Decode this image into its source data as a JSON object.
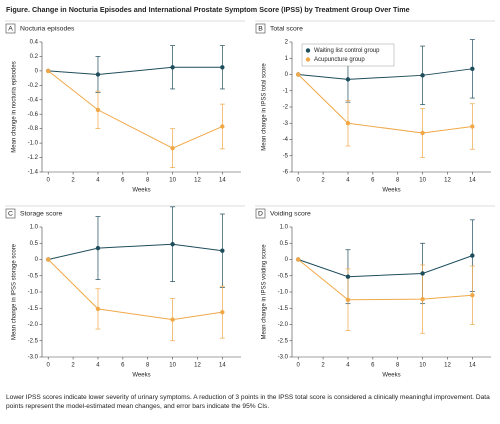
{
  "title": "Figure. Change in Nocturia Episodes and International Prostate Symptom Score (IPSS) by Treatment Group Over Time",
  "note": "Lower IPSS scores indicate lower severity of urinary symptoms. A reduction of 3 points in the IPSS total score is considered a clinically meaningful improvement. Data points represent the model-estimated mean changes, and error bars indicate the 95% CIs.",
  "chart_data": [
    {
      "type": "line",
      "panel": "A",
      "title": "Nocturia episodes",
      "xlabel": "Weeks",
      "ylabel": "Mean change in nocturia episodes",
      "x": [
        0,
        4,
        10,
        14
      ],
      "xlim": [
        -0.5,
        15.5
      ],
      "xticks": [
        0,
        2,
        4,
        6,
        8,
        10,
        12,
        14
      ],
      "ylim": [
        -1.4,
        0.4
      ],
      "yticks": [
        0.4,
        0.2,
        0,
        -0.2,
        -0.4,
        -0.6,
        -0.8,
        {
          "value": -1,
          "label": "-1.0"
        },
        -1.2,
        -1.4
      ],
      "series": [
        {
          "color": "#1e4d5c",
          "values": [
            0,
            -0.05,
            0.05,
            0.05
          ],
          "errors": [
            null,
            0.25,
            0.3,
            0.3
          ]
        },
        {
          "color": "#f0a848",
          "values": [
            0,
            -0.54,
            -1.07,
            -0.77
          ],
          "errors": [
            null,
            0.26,
            0.27,
            0.31
          ]
        }
      ]
    },
    {
      "type": "line",
      "panel": "B",
      "title": "Total score",
      "xlabel": "Weeks",
      "ylabel": "Mean change in IPSS total score",
      "x": [
        0,
        4,
        10,
        14
      ],
      "xlim": [
        -0.5,
        15.5
      ],
      "xticks": [
        0,
        2,
        4,
        6,
        8,
        10,
        12,
        14
      ],
      "ylim": [
        -6,
        2
      ],
      "yticks": [
        2,
        1,
        0,
        -1,
        -2,
        -3,
        -4,
        -5,
        -6
      ],
      "legend": "upper left",
      "series": [
        {
          "name": "Waiting list control group",
          "color": "#1e4d5c",
          "values": [
            0,
            -0.3,
            -0.05,
            0.35
          ],
          "errors": [
            null,
            1.4,
            1.8,
            1.8
          ]
        },
        {
          "name": "Acupuncture group",
          "color": "#f0a848",
          "values": [
            0,
            -3.0,
            -3.6,
            -3.2
          ],
          "errors": [
            null,
            1.4,
            1.5,
            1.4
          ]
        }
      ]
    },
    {
      "type": "line",
      "panel": "C",
      "title": "Storage score",
      "xlabel": "Weeks",
      "ylabel": "Mean change in IPSS storage score",
      "x": [
        0,
        4,
        10,
        14
      ],
      "xlim": [
        -0.5,
        15.5
      ],
      "xticks": [
        0,
        2,
        4,
        6,
        8,
        10,
        12,
        14
      ],
      "ylim": [
        -3,
        1
      ],
      "yticks": [
        {
          "value": 1,
          "label": "1.0"
        },
        0.5,
        0,
        -0.5,
        {
          "value": -1,
          "label": "-1.0"
        },
        -1.5,
        {
          "value": -2,
          "label": "-2.0"
        },
        -2.5,
        {
          "value": -3,
          "label": "-3.0"
        }
      ],
      "series": [
        {
          "color": "#1e4d5c",
          "values": [
            0,
            0.35,
            0.47,
            0.27
          ],
          "errors": [
            null,
            0.97,
            1.15,
            1.13
          ]
        },
        {
          "color": "#f0a848",
          "values": [
            0,
            -1.52,
            -1.85,
            -1.62
          ],
          "errors": [
            null,
            0.62,
            0.65,
            0.8
          ]
        }
      ]
    },
    {
      "type": "line",
      "panel": "D",
      "title": "Voiding score",
      "xlabel": "Weeks",
      "ylabel": "Mean change in IPSS voiding score",
      "x": [
        0,
        4,
        10,
        14
      ],
      "xlim": [
        -0.5,
        15.5
      ],
      "xticks": [
        0,
        2,
        4,
        6,
        8,
        10,
        12,
        14
      ],
      "ylim": [
        -3,
        1
      ],
      "yticks": [
        {
          "value": 1,
          "label": "1.0"
        },
        0.5,
        0,
        -0.5,
        {
          "value": -1,
          "label": "-1.0"
        },
        -1.5,
        {
          "value": -2,
          "label": "-2.0"
        },
        -2.5,
        {
          "value": -3,
          "label": "-3.0"
        }
      ],
      "series": [
        {
          "color": "#1e4d5c",
          "values": [
            0,
            -0.53,
            -0.43,
            0.12
          ],
          "errors": [
            null,
            0.83,
            0.93,
            1.1
          ]
        },
        {
          "color": "#f0a848",
          "values": [
            0,
            -1.24,
            -1.22,
            -1.1
          ],
          "errors": [
            null,
            0.95,
            1.05,
            0.9
          ]
        }
      ]
    }
  ]
}
